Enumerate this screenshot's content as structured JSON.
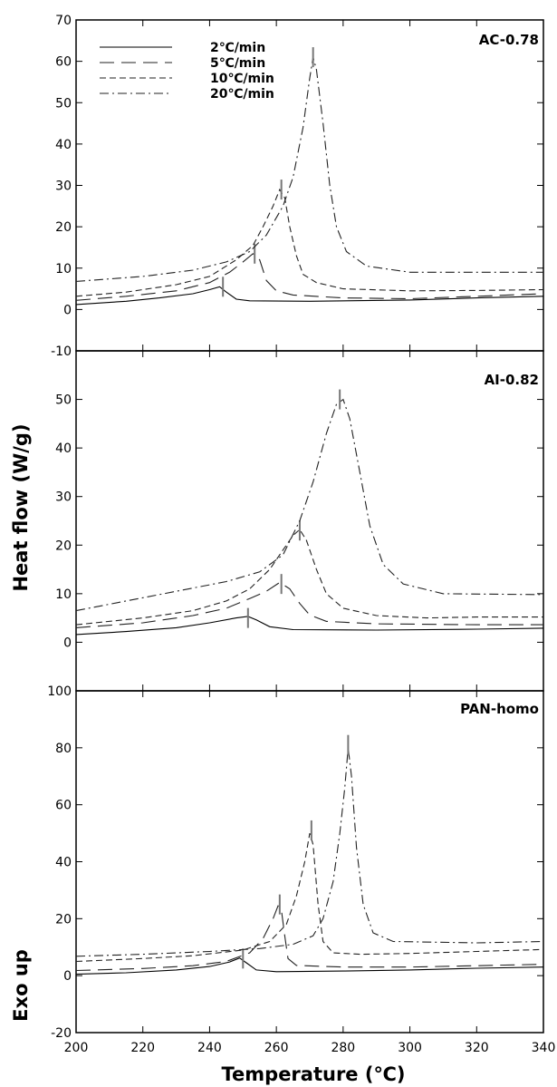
{
  "chart_data": {
    "type": "line",
    "xlabel": "Temperature (℃)",
    "ylabel": "Heat flow (W/g)",
    "ylabel_secondary": "Exo up",
    "xlim": [
      200,
      340
    ],
    "x_ticks": [
      "200",
      "220",
      "240",
      "260",
      "280",
      "300",
      "320",
      "340"
    ],
    "legend": {
      "placement": "top-left",
      "entries": [
        {
          "name": "2℃/min",
          "dash": "solid"
        },
        {
          "name": "5℃/min",
          "dash": "long-dash"
        },
        {
          "name": "10℃/min",
          "dash": "short-dash"
        },
        {
          "name": "20℃/min",
          "dash": "dash-dot"
        }
      ]
    },
    "panels": [
      {
        "label": "AC-0.78",
        "ylim": [
          -10,
          70
        ],
        "y_ticks": [
          "-10",
          "0",
          "10",
          "20",
          "30",
          "40",
          "50",
          "60",
          "70"
        ],
        "series": [
          {
            "name": "2℃/min",
            "peak": [
              244,
              5.5
            ],
            "points": [
              [
                200,
                1.2
              ],
              [
                215,
                2
              ],
              [
                225,
                2.8
              ],
              [
                235,
                3.8
              ],
              [
                240,
                4.8
              ],
              [
                243,
                5.5
              ],
              [
                245,
                4.2
              ],
              [
                248,
                2.5
              ],
              [
                252,
                2.1
              ],
              [
                270,
                2
              ],
              [
                300,
                2.3
              ],
              [
                320,
                2.8
              ],
              [
                340,
                3.2
              ]
            ]
          },
          {
            "name": "5℃/min",
            "peak": [
              253.5,
              13.5
            ],
            "points": [
              [
                200,
                2.2
              ],
              [
                215,
                3.2
              ],
              [
                230,
                4.5
              ],
              [
                240,
                6.5
              ],
              [
                246,
                9
              ],
              [
                250,
                11.5
              ],
              [
                253,
                13.5
              ],
              [
                255,
                12
              ],
              [
                257,
                7
              ],
              [
                260,
                4.5
              ],
              [
                265,
                3.5
              ],
              [
                280,
                2.8
              ],
              [
                300,
                2.6
              ],
              [
                320,
                3.2
              ],
              [
                340,
                3.8
              ]
            ]
          },
          {
            "name": "10℃/min",
            "peak": [
              261.5,
              29
            ],
            "points": [
              [
                200,
                3.2
              ],
              [
                215,
                4.2
              ],
              [
                230,
                6
              ],
              [
                240,
                8
              ],
              [
                248,
                12
              ],
              [
                253,
                15.5
              ],
              [
                256,
                20
              ],
              [
                259,
                25
              ],
              [
                261,
                29
              ],
              [
                262.5,
                27
              ],
              [
                264,
                20
              ],
              [
                266,
                13
              ],
              [
                268,
                8.5
              ],
              [
                272,
                6.5
              ],
              [
                280,
                5
              ],
              [
                300,
                4.5
              ],
              [
                320,
                4.6
              ],
              [
                340,
                4.8
              ]
            ]
          },
          {
            "name": "20℃/min",
            "peak": [
              271,
              61
            ],
            "points": [
              [
                200,
                6.8
              ],
              [
                220,
                8
              ],
              [
                235,
                9.5
              ],
              [
                245,
                11.5
              ],
              [
                252,
                14
              ],
              [
                257,
                18
              ],
              [
                262,
                25
              ],
              [
                265,
                32
              ],
              [
                268,
                44
              ],
              [
                270,
                56
              ],
              [
                271,
                61
              ],
              [
                272,
                58
              ],
              [
                274,
                45
              ],
              [
                276,
                30
              ],
              [
                278,
                20
              ],
              [
                281,
                14
              ],
              [
                287,
                10.5
              ],
              [
                300,
                9
              ],
              [
                320,
                9
              ],
              [
                340,
                9
              ]
            ]
          }
        ]
      },
      {
        "label": "AI-0.82",
        "ylim": [
          -10,
          60
        ],
        "y_ticks": [
          "0",
          "10",
          "20",
          "30",
          "40",
          "50"
        ],
        "series": [
          {
            "name": "2℃/min",
            "peak": [
              251.5,
              5
            ],
            "points": [
              [
                200,
                1.6
              ],
              [
                215,
                2.2
              ],
              [
                230,
                3
              ],
              [
                240,
                4
              ],
              [
                248,
                5
              ],
              [
                251.5,
                5.3
              ],
              [
                254,
                4.6
              ],
              [
                258,
                3.2
              ],
              [
                265,
                2.6
              ],
              [
                290,
                2.5
              ],
              [
                320,
                2.7
              ],
              [
                340,
                2.9
              ]
            ]
          },
          {
            "name": "5℃/min",
            "peak": [
              261.5,
              12
            ],
            "points": [
              [
                200,
                3
              ],
              [
                220,
                4
              ],
              [
                235,
                5.5
              ],
              [
                245,
                7
              ],
              [
                252,
                9
              ],
              [
                257,
                10.5
              ],
              [
                261,
                12.3
              ],
              [
                264,
                11
              ],
              [
                267,
                8
              ],
              [
                270,
                5.6
              ],
              [
                275,
                4.3
              ],
              [
                290,
                3.8
              ],
              [
                320,
                3.6
              ],
              [
                340,
                3.6
              ]
            ]
          },
          {
            "name": "10℃/min",
            "peak": [
              267,
              23
            ],
            "points": [
              [
                200,
                3.6
              ],
              [
                220,
                5
              ],
              [
                235,
                6.5
              ],
              [
                245,
                8.5
              ],
              [
                252,
                11
              ],
              [
                258,
                15
              ],
              [
                262,
                19
              ],
              [
                265,
                22
              ],
              [
                267,
                23.2
              ],
              [
                269,
                21
              ],
              [
                272,
                15
              ],
              [
                275,
                10
              ],
              [
                280,
                7
              ],
              [
                290,
                5.5
              ],
              [
                305,
                5
              ],
              [
                320,
                5.2
              ],
              [
                340,
                5.2
              ]
            ]
          },
          {
            "name": "20℃/min",
            "peak": [
              279,
              50
            ],
            "points": [
              [
                200,
                6.5
              ],
              [
                215,
                8.5
              ],
              [
                230,
                10.5
              ],
              [
                245,
                12.5
              ],
              [
                255,
                14.5
              ],
              [
                262,
                18
              ],
              [
                267,
                25
              ],
              [
                271,
                33
              ],
              [
                275,
                43
              ],
              [
                278,
                49
              ],
              [
                280,
                50
              ],
              [
                282,
                46
              ],
              [
                285,
                35
              ],
              [
                288,
                24
              ],
              [
                292,
                16
              ],
              [
                298,
                12
              ],
              [
                310,
                10
              ],
              [
                340,
                9.8
              ]
            ]
          }
        ]
      },
      {
        "label": "PAN-homo",
        "ylim": [
          -20,
          100
        ],
        "y_ticks": [
          "-20",
          "0",
          "20",
          "40",
          "60",
          "80",
          "100"
        ],
        "series": [
          {
            "name": "2℃/min",
            "peak": [
              250,
              6
            ],
            "points": [
              [
                200,
                0.5
              ],
              [
                215,
                1
              ],
              [
                230,
                2
              ],
              [
                240,
                3.2
              ],
              [
                246,
                4.8
              ],
              [
                249,
                6.2
              ],
              [
                251,
                4.5
              ],
              [
                254,
                2
              ],
              [
                260,
                1.4
              ],
              [
                280,
                1.6
              ],
              [
                300,
                2
              ],
              [
                320,
                2.6
              ],
              [
                340,
                3
              ]
            ]
          },
          {
            "name": "5℃/min",
            "peak": [
              261,
              25
            ],
            "points": [
              [
                200,
                1.8
              ],
              [
                220,
                2.5
              ],
              [
                235,
                3.5
              ],
              [
                245,
                5
              ],
              [
                252,
                8
              ],
              [
                256,
                13
              ],
              [
                259,
                20
              ],
              [
                260.5,
                24.5
              ],
              [
                261.5,
                23
              ],
              [
                262.5,
                14
              ],
              [
                263.5,
                6
              ],
              [
                266,
                3.6
              ],
              [
                280,
                3
              ],
              [
                300,
                3
              ],
              [
                320,
                3.5
              ],
              [
                340,
                4
              ]
            ]
          },
          {
            "name": "10℃/min",
            "peak": [
              270.5,
              51
            ],
            "points": [
              [
                200,
                5
              ],
              [
                220,
                6
              ],
              [
                235,
                7
              ],
              [
                250,
                9
              ],
              [
                258,
                12
              ],
              [
                263,
                18
              ],
              [
                266,
                28
              ],
              [
                268.5,
                40
              ],
              [
                270,
                50
              ],
              [
                271,
                46
              ],
              [
                272.5,
                25
              ],
              [
                274,
                12
              ],
              [
                277,
                8
              ],
              [
                285,
                7.5
              ],
              [
                300,
                7.8
              ],
              [
                320,
                8.5
              ],
              [
                340,
                9.2
              ]
            ]
          },
          {
            "name": "20℃/min",
            "peak": [
              281.5,
              81
            ],
            "points": [
              [
                200,
                6.8
              ],
              [
                220,
                7.5
              ],
              [
                240,
                8.5
              ],
              [
                255,
                9.5
              ],
              [
                265,
                11
              ],
              [
                271,
                14
              ],
              [
                274,
                20
              ],
              [
                277,
                33
              ],
              [
                279,
                50
              ],
              [
                280.5,
                66
              ],
              [
                281.5,
                80
              ],
              [
                282.5,
                70
              ],
              [
                284,
                45
              ],
              [
                286,
                25
              ],
              [
                289,
                15
              ],
              [
                295,
                12
              ],
              [
                320,
                11.5
              ],
              [
                340,
                12
              ]
            ]
          }
        ]
      }
    ]
  },
  "colors": {
    "2℃/min": "#000000",
    "5℃/min": "#222222",
    "10℃/min": "#222222",
    "20℃/min": "#222222",
    "peak_marker": "#777777"
  }
}
